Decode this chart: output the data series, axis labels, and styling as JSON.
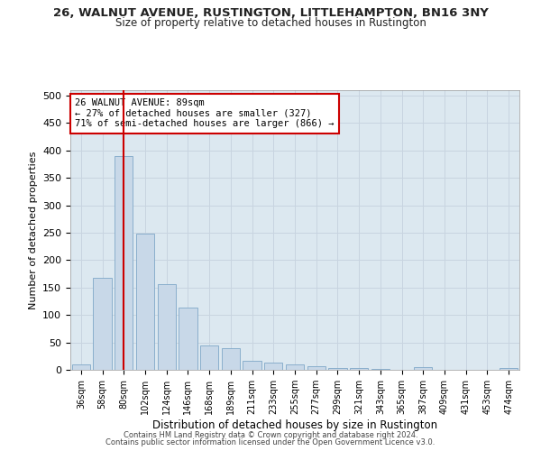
{
  "title1": "26, WALNUT AVENUE, RUSTINGTON, LITTLEHAMPTON, BN16 3NY",
  "title2": "Size of property relative to detached houses in Rustington",
  "xlabel": "Distribution of detached houses by size in Rustington",
  "ylabel": "Number of detached properties",
  "categories": [
    "36sqm",
    "58sqm",
    "80sqm",
    "102sqm",
    "124sqm",
    "146sqm",
    "168sqm",
    "189sqm",
    "211sqm",
    "233sqm",
    "255sqm",
    "277sqm",
    "299sqm",
    "321sqm",
    "343sqm",
    "365sqm",
    "387sqm",
    "409sqm",
    "431sqm",
    "453sqm",
    "474sqm"
  ],
  "values": [
    10,
    167,
    390,
    248,
    157,
    113,
    44,
    40,
    17,
    13,
    10,
    6,
    4,
    3,
    2,
    0,
    5,
    0,
    0,
    0,
    4
  ],
  "bar_color": "#c8d8e8",
  "bar_edge_color": "#7fa8c8",
  "grid_color": "#c8d4e0",
  "background_color": "#dce8f0",
  "vline_x": 2,
  "vline_color": "#cc0000",
  "annotation_text": "26 WALNUT AVENUE: 89sqm\n← 27% of detached houses are smaller (327)\n71% of semi-detached houses are larger (866) →",
  "annotation_box_color": "#ffffff",
  "annotation_box_edge_color": "#cc0000",
  "footer1": "Contains HM Land Registry data © Crown copyright and database right 2024.",
  "footer2": "Contains public sector information licensed under the Open Government Licence v3.0.",
  "ylim": [
    0,
    510
  ],
  "yticks": [
    0,
    50,
    100,
    150,
    200,
    250,
    300,
    350,
    400,
    450,
    500
  ]
}
